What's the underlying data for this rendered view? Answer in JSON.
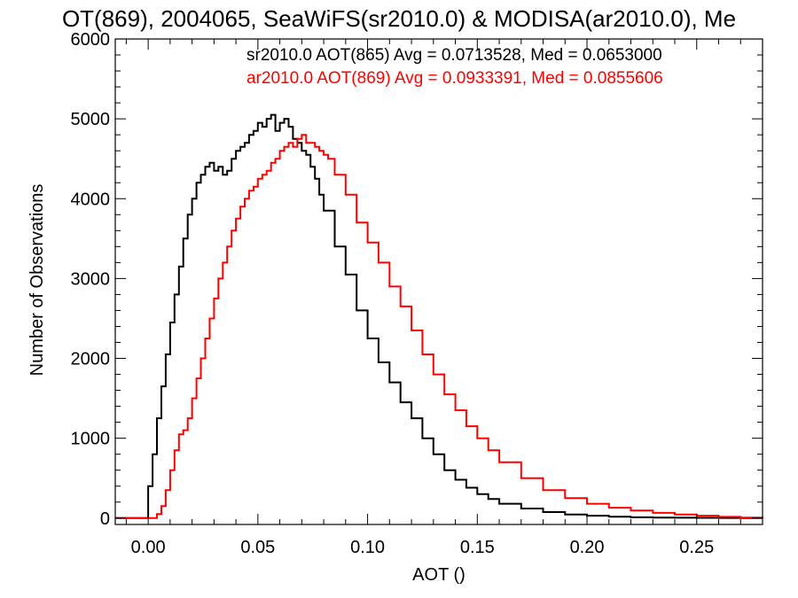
{
  "chart_data": {
    "type": "line",
    "title": "OT(869), 2004065, SeaWiFS(sr2010.0) & MODISA(ar2010.0), Me",
    "xlabel": "AOT ()",
    "ylabel": "Number of Observations",
    "xlim": [
      -0.015,
      0.28
    ],
    "ylim": [
      -80,
      6000
    ],
    "x_ticks": [
      0.0,
      0.05,
      0.1,
      0.15,
      0.2,
      0.25
    ],
    "x_tick_labels": [
      "0.00",
      "0.05",
      "0.10",
      "0.15",
      "0.20",
      "0.25"
    ],
    "y_ticks": [
      0,
      1000,
      2000,
      3000,
      4000,
      5000,
      6000
    ],
    "y_tick_labels": [
      "0",
      "1000",
      "2000",
      "3000",
      "4000",
      "5000",
      "6000"
    ],
    "grid": false,
    "legend_position": "top-right",
    "legend": [
      {
        "text": "sr2010.0 AOT(865) Avg = 0.0713528, Med = 0.0653000",
        "color": "#000000"
      },
      {
        "text": "ar2010.0 AOT(869) Avg = 0.0933391, Med = 0.0855606",
        "color": "#ff0000"
      }
    ],
    "series": [
      {
        "color": "#000000",
        "x": [
          -0.015,
          -0.001,
          0.0,
          0.002,
          0.004,
          0.006,
          0.008,
          0.01,
          0.012,
          0.014,
          0.016,
          0.018,
          0.02,
          0.022,
          0.024,
          0.026,
          0.028,
          0.03,
          0.032,
          0.034,
          0.036,
          0.038,
          0.04,
          0.042,
          0.044,
          0.046,
          0.048,
          0.05,
          0.052,
          0.054,
          0.056,
          0.058,
          0.06,
          0.062,
          0.064,
          0.066,
          0.068,
          0.07,
          0.072,
          0.074,
          0.076,
          0.078,
          0.08,
          0.085,
          0.09,
          0.095,
          0.1,
          0.105,
          0.11,
          0.115,
          0.12,
          0.125,
          0.13,
          0.135,
          0.14,
          0.145,
          0.15,
          0.155,
          0.16,
          0.17,
          0.18,
          0.19,
          0.2,
          0.21,
          0.22,
          0.23,
          0.24,
          0.25,
          0.26,
          0.27,
          0.28
        ],
        "y": [
          0,
          0,
          400,
          800,
          1250,
          1650,
          2050,
          2450,
          2800,
          3150,
          3500,
          3800,
          4000,
          4200,
          4300,
          4400,
          4450,
          4350,
          4400,
          4300,
          4350,
          4500,
          4600,
          4650,
          4700,
          4800,
          4850,
          4950,
          4900,
          5000,
          5050,
          4850,
          4950,
          5000,
          4900,
          4750,
          4700,
          4600,
          4550,
          4400,
          4250,
          4050,
          3850,
          3400,
          3050,
          2600,
          2250,
          1950,
          1700,
          1450,
          1250,
          1000,
          800,
          600,
          480,
          380,
          300,
          240,
          180,
          120,
          75,
          45,
          30,
          18,
          10,
          6,
          4,
          3,
          2,
          1,
          0
        ]
      },
      {
        "color": "#ff0000",
        "x": [
          -0.015,
          0.002,
          0.004,
          0.006,
          0.008,
          0.01,
          0.012,
          0.014,
          0.016,
          0.018,
          0.02,
          0.022,
          0.024,
          0.026,
          0.028,
          0.03,
          0.032,
          0.034,
          0.036,
          0.038,
          0.04,
          0.042,
          0.044,
          0.046,
          0.048,
          0.05,
          0.052,
          0.054,
          0.056,
          0.058,
          0.06,
          0.062,
          0.064,
          0.066,
          0.068,
          0.07,
          0.072,
          0.074,
          0.076,
          0.078,
          0.08,
          0.082,
          0.085,
          0.09,
          0.095,
          0.1,
          0.105,
          0.11,
          0.115,
          0.12,
          0.125,
          0.13,
          0.135,
          0.14,
          0.145,
          0.15,
          0.155,
          0.16,
          0.17,
          0.18,
          0.19,
          0.2,
          0.21,
          0.22,
          0.23,
          0.24,
          0.25,
          0.26,
          0.27,
          0.28
        ],
        "y": [
          0,
          0,
          50,
          150,
          350,
          600,
          850,
          1050,
          1100,
          1250,
          1500,
          1750,
          2000,
          2250,
          2500,
          2750,
          3000,
          3200,
          3400,
          3600,
          3750,
          3900,
          4000,
          4100,
          4150,
          4250,
          4300,
          4350,
          4450,
          4500,
          4600,
          4650,
          4700,
          4650,
          4750,
          4800,
          4700,
          4700,
          4650,
          4600,
          4550,
          4500,
          4300,
          4050,
          3700,
          3450,
          3200,
          2900,
          2650,
          2350,
          2050,
          1800,
          1550,
          1350,
          1150,
          1000,
          850,
          700,
          500,
          350,
          250,
          180,
          130,
          95,
          65,
          45,
          30,
          15,
          5,
          0
        ]
      }
    ]
  }
}
